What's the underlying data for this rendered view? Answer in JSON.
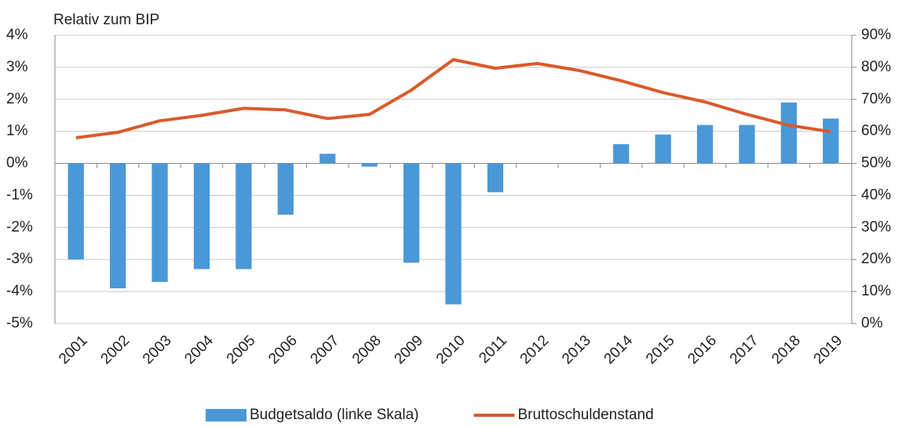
{
  "chart_data": {
    "type": "bar",
    "title": "Relativ zum BIP",
    "categories": [
      "2001",
      "2002",
      "2003",
      "2004",
      "2005",
      "2006",
      "2007",
      "2008",
      "2009",
      "2010",
      "2011",
      "2012",
      "2013",
      "2014",
      "2015",
      "2016",
      "2017",
      "2018",
      "2019"
    ],
    "series": [
      {
        "name": "Budgetsaldo (linke Skala)",
        "type": "bar",
        "color": "#4a98d8",
        "values": [
          -3.0,
          -3.9,
          -3.7,
          -3.3,
          -3.3,
          -1.6,
          0.3,
          -0.1,
          -3.1,
          -4.4,
          -0.9,
          0,
          0,
          0.6,
          0.9,
          1.2,
          1.2,
          1.9,
          1.4
        ]
      },
      {
        "name": "Bruttoschuldenstand",
        "type": "line",
        "axis": "y2",
        "color": "#d95a2b",
        "values": [
          58,
          59.7,
          63.3,
          65,
          67.2,
          66.7,
          64,
          65.3,
          72.9,
          82.4,
          79.7,
          81.2,
          79,
          75.8,
          72.1,
          69.2,
          65.3,
          61.9,
          59.9
        ]
      }
    ],
    "ylim": [
      -5,
      4
    ],
    "yticks": [
      {
        "value": -5,
        "label": "-5%"
      },
      {
        "value": -4,
        "label": "-4%"
      },
      {
        "value": -3,
        "label": "-3%"
      },
      {
        "value": -2,
        "label": "-2%"
      },
      {
        "value": -1,
        "label": "-1%"
      },
      {
        "value": 0,
        "label": "0%"
      },
      {
        "value": 1,
        "label": "1%"
      },
      {
        "value": 2,
        "label": "2%"
      },
      {
        "value": 3,
        "label": "3%"
      },
      {
        "value": 4,
        "label": "4%"
      }
    ],
    "y2lim": [
      0,
      90
    ],
    "y2ticks": [
      {
        "value": 0,
        "label": "0%"
      },
      {
        "value": 10,
        "label": "10%"
      },
      {
        "value": 20,
        "label": "20%"
      },
      {
        "value": 30,
        "label": "30%"
      },
      {
        "value": 40,
        "label": "40%"
      },
      {
        "value": 50,
        "label": "50%"
      },
      {
        "value": 60,
        "label": "60%"
      },
      {
        "value": 70,
        "label": "70%"
      },
      {
        "value": 80,
        "label": "80%"
      },
      {
        "value": 90,
        "label": "90%"
      }
    ],
    "grid": true,
    "legend": "bottom"
  }
}
